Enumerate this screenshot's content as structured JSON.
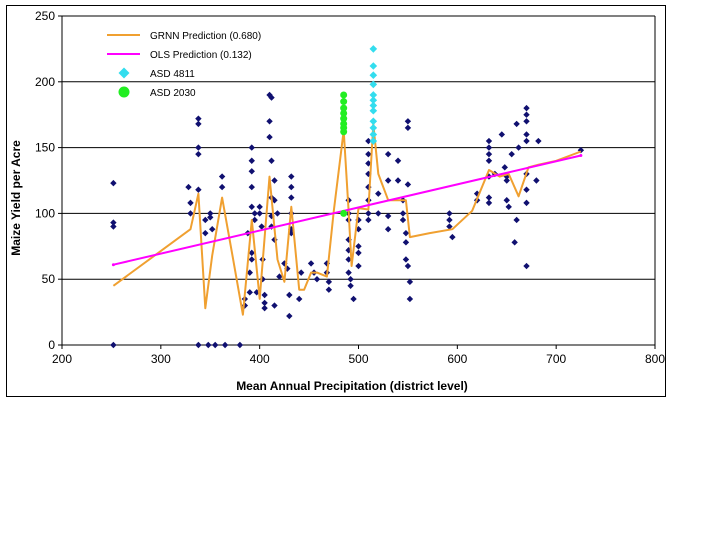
{
  "chart_data": {
    "type": "scatter",
    "title": "",
    "xlabel": "Mean Annual Precipitation (district level)",
    "ylabel": "Maize Yield per Acre",
    "xlim": [
      200,
      800
    ],
    "ylim": [
      0,
      250
    ],
    "x_ticks": [
      200,
      300,
      400,
      500,
      600,
      700,
      800
    ],
    "y_ticks": [
      0,
      50,
      100,
      150,
      200,
      250
    ],
    "grid": "horizontal",
    "legend_position": "top-left",
    "series": [
      {
        "name": "GRNN Prediction (0.680)",
        "kind": "line",
        "color": "#f0a030",
        "points": [
          [
            252,
            45
          ],
          [
            330,
            88
          ],
          [
            338,
            115
          ],
          [
            345,
            28
          ],
          [
            352,
            68
          ],
          [
            362,
            112
          ],
          [
            372,
            70
          ],
          [
            383,
            23
          ],
          [
            392,
            95
          ],
          [
            400,
            35
          ],
          [
            410,
            128
          ],
          [
            418,
            65
          ],
          [
            425,
            48
          ],
          [
            432,
            105
          ],
          [
            440,
            42
          ],
          [
            445,
            42
          ],
          [
            452,
            55
          ],
          [
            458,
            55
          ],
          [
            468,
            52
          ],
          [
            475,
            102
          ],
          [
            485,
            163
          ],
          [
            490,
            102
          ],
          [
            493,
            60
          ],
          [
            500,
            104
          ],
          [
            510,
            103
          ],
          [
            515,
            168
          ],
          [
            520,
            130
          ],
          [
            530,
            110
          ],
          [
            548,
            110
          ],
          [
            552,
            82
          ],
          [
            572,
            85
          ],
          [
            595,
            88
          ],
          [
            615,
            102
          ],
          [
            632,
            133
          ],
          [
            643,
            128
          ],
          [
            652,
            130
          ],
          [
            662,
            113
          ],
          [
            672,
            135
          ],
          [
            682,
            137
          ],
          [
            700,
            140
          ],
          [
            725,
            147
          ]
        ]
      },
      {
        "name": "OLS Prediction (0.132)",
        "kind": "line",
        "color": "#ff00ff",
        "points": [
          [
            252,
            61
          ],
          [
            725,
            144
          ]
        ]
      },
      {
        "name": "ASD 4811",
        "kind": "scatter",
        "marker": "diamond",
        "color": "#33ddee",
        "points": [
          [
            515,
            225
          ],
          [
            515,
            212
          ],
          [
            515,
            205
          ],
          [
            515,
            198
          ],
          [
            515,
            190
          ],
          [
            515,
            186
          ],
          [
            515,
            182
          ],
          [
            515,
            178
          ],
          [
            515,
            170
          ],
          [
            515,
            165
          ],
          [
            515,
            160
          ],
          [
            515,
            155
          ]
        ]
      },
      {
        "name": "ASD 2030",
        "kind": "scatter",
        "marker": "circle",
        "color": "#22ee22",
        "points": [
          [
            485,
            190
          ],
          [
            485,
            185
          ],
          [
            485,
            180
          ],
          [
            485,
            176
          ],
          [
            485,
            172
          ],
          [
            485,
            168
          ],
          [
            485,
            165
          ],
          [
            485,
            162
          ],
          [
            485,
            100
          ]
        ]
      },
      {
        "name": "",
        "kind": "scatter",
        "marker": "diamond",
        "color": "#101070",
        "points": [
          [
            252,
            123
          ],
          [
            252,
            93
          ],
          [
            252,
            90
          ],
          [
            252,
            0
          ],
          [
            328,
            120
          ],
          [
            330,
            108
          ],
          [
            330,
            100
          ],
          [
            338,
            172
          ],
          [
            338,
            168
          ],
          [
            338,
            150
          ],
          [
            338,
            145
          ],
          [
            338,
            118
          ],
          [
            338,
            0
          ],
          [
            345,
            95
          ],
          [
            345,
            85
          ],
          [
            348,
            0
          ],
          [
            350,
            100
          ],
          [
            350,
            97
          ],
          [
            352,
            88
          ],
          [
            355,
            0
          ],
          [
            362,
            128
          ],
          [
            362,
            120
          ],
          [
            365,
            0
          ],
          [
            380,
            0
          ],
          [
            385,
            35
          ],
          [
            385,
            30
          ],
          [
            388,
            85
          ],
          [
            390,
            55
          ],
          [
            390,
            40
          ],
          [
            392,
            150
          ],
          [
            392,
            140
          ],
          [
            392,
            132
          ],
          [
            392,
            120
          ],
          [
            392,
            105
          ],
          [
            392,
            70
          ],
          [
            392,
            65
          ],
          [
            395,
            100
          ],
          [
            395,
            95
          ],
          [
            397,
            40
          ],
          [
            400,
            105
          ],
          [
            400,
            100
          ],
          [
            402,
            90
          ],
          [
            403,
            65
          ],
          [
            403,
            50
          ],
          [
            405,
            38
          ],
          [
            405,
            32
          ],
          [
            405,
            28
          ],
          [
            410,
            190
          ],
          [
            410,
            170
          ],
          [
            410,
            158
          ],
          [
            412,
            188
          ],
          [
            412,
            140
          ],
          [
            412,
            112
          ],
          [
            412,
            98
          ],
          [
            412,
            90
          ],
          [
            415,
            125
          ],
          [
            415,
            110
          ],
          [
            415,
            80
          ],
          [
            415,
            30
          ],
          [
            418,
            100
          ],
          [
            420,
            52
          ],
          [
            425,
            62
          ],
          [
            428,
            58
          ],
          [
            430,
            38
          ],
          [
            430,
            22
          ],
          [
            432,
            128
          ],
          [
            432,
            120
          ],
          [
            432,
            112
          ],
          [
            432,
            100
          ],
          [
            432,
            88
          ],
          [
            432,
            85
          ],
          [
            440,
            35
          ],
          [
            442,
            55
          ],
          [
            452,
            62
          ],
          [
            455,
            55
          ],
          [
            458,
            50
          ],
          [
            468,
            62
          ],
          [
            468,
            55
          ],
          [
            470,
            48
          ],
          [
            470,
            42
          ],
          [
            490,
            110
          ],
          [
            490,
            100
          ],
          [
            490,
            95
          ],
          [
            490,
            80
          ],
          [
            490,
            72
          ],
          [
            490,
            65
          ],
          [
            490,
            55
          ],
          [
            492,
            50
          ],
          [
            492,
            45
          ],
          [
            495,
            35
          ],
          [
            500,
            95
          ],
          [
            500,
            88
          ],
          [
            500,
            75
          ],
          [
            500,
            70
          ],
          [
            500,
            60
          ],
          [
            510,
            155
          ],
          [
            510,
            145
          ],
          [
            510,
            138
          ],
          [
            510,
            130
          ],
          [
            510,
            120
          ],
          [
            510,
            110
          ],
          [
            510,
            100
          ],
          [
            510,
            95
          ],
          [
            520,
            115
          ],
          [
            520,
            100
          ],
          [
            530,
            145
          ],
          [
            530,
            125
          ],
          [
            530,
            98
          ],
          [
            530,
            88
          ],
          [
            540,
            140
          ],
          [
            540,
            125
          ],
          [
            545,
            110
          ],
          [
            545,
            100
          ],
          [
            545,
            95
          ],
          [
            548,
            85
          ],
          [
            548,
            78
          ],
          [
            548,
            65
          ],
          [
            550,
            170
          ],
          [
            550,
            165
          ],
          [
            550,
            122
          ],
          [
            550,
            60
          ],
          [
            552,
            48
          ],
          [
            552,
            35
          ],
          [
            592,
            100
          ],
          [
            592,
            95
          ],
          [
            592,
            90
          ],
          [
            595,
            82
          ],
          [
            620,
            115
          ],
          [
            620,
            110
          ],
          [
            632,
            155
          ],
          [
            632,
            150
          ],
          [
            632,
            145
          ],
          [
            632,
            140
          ],
          [
            632,
            128
          ],
          [
            632,
            112
          ],
          [
            632,
            108
          ],
          [
            638,
            130
          ],
          [
            645,
            160
          ],
          [
            648,
            135
          ],
          [
            650,
            128
          ],
          [
            650,
            125
          ],
          [
            650,
            110
          ],
          [
            652,
            105
          ],
          [
            655,
            145
          ],
          [
            658,
            78
          ],
          [
            660,
            168
          ],
          [
            660,
            95
          ],
          [
            662,
            150
          ],
          [
            670,
            180
          ],
          [
            670,
            175
          ],
          [
            670,
            170
          ],
          [
            670,
            160
          ],
          [
            670,
            155
          ],
          [
            670,
            130
          ],
          [
            670,
            118
          ],
          [
            670,
            108
          ],
          [
            670,
            60
          ],
          [
            680,
            125
          ],
          [
            682,
            155
          ],
          [
            725,
            148
          ]
        ]
      }
    ]
  }
}
